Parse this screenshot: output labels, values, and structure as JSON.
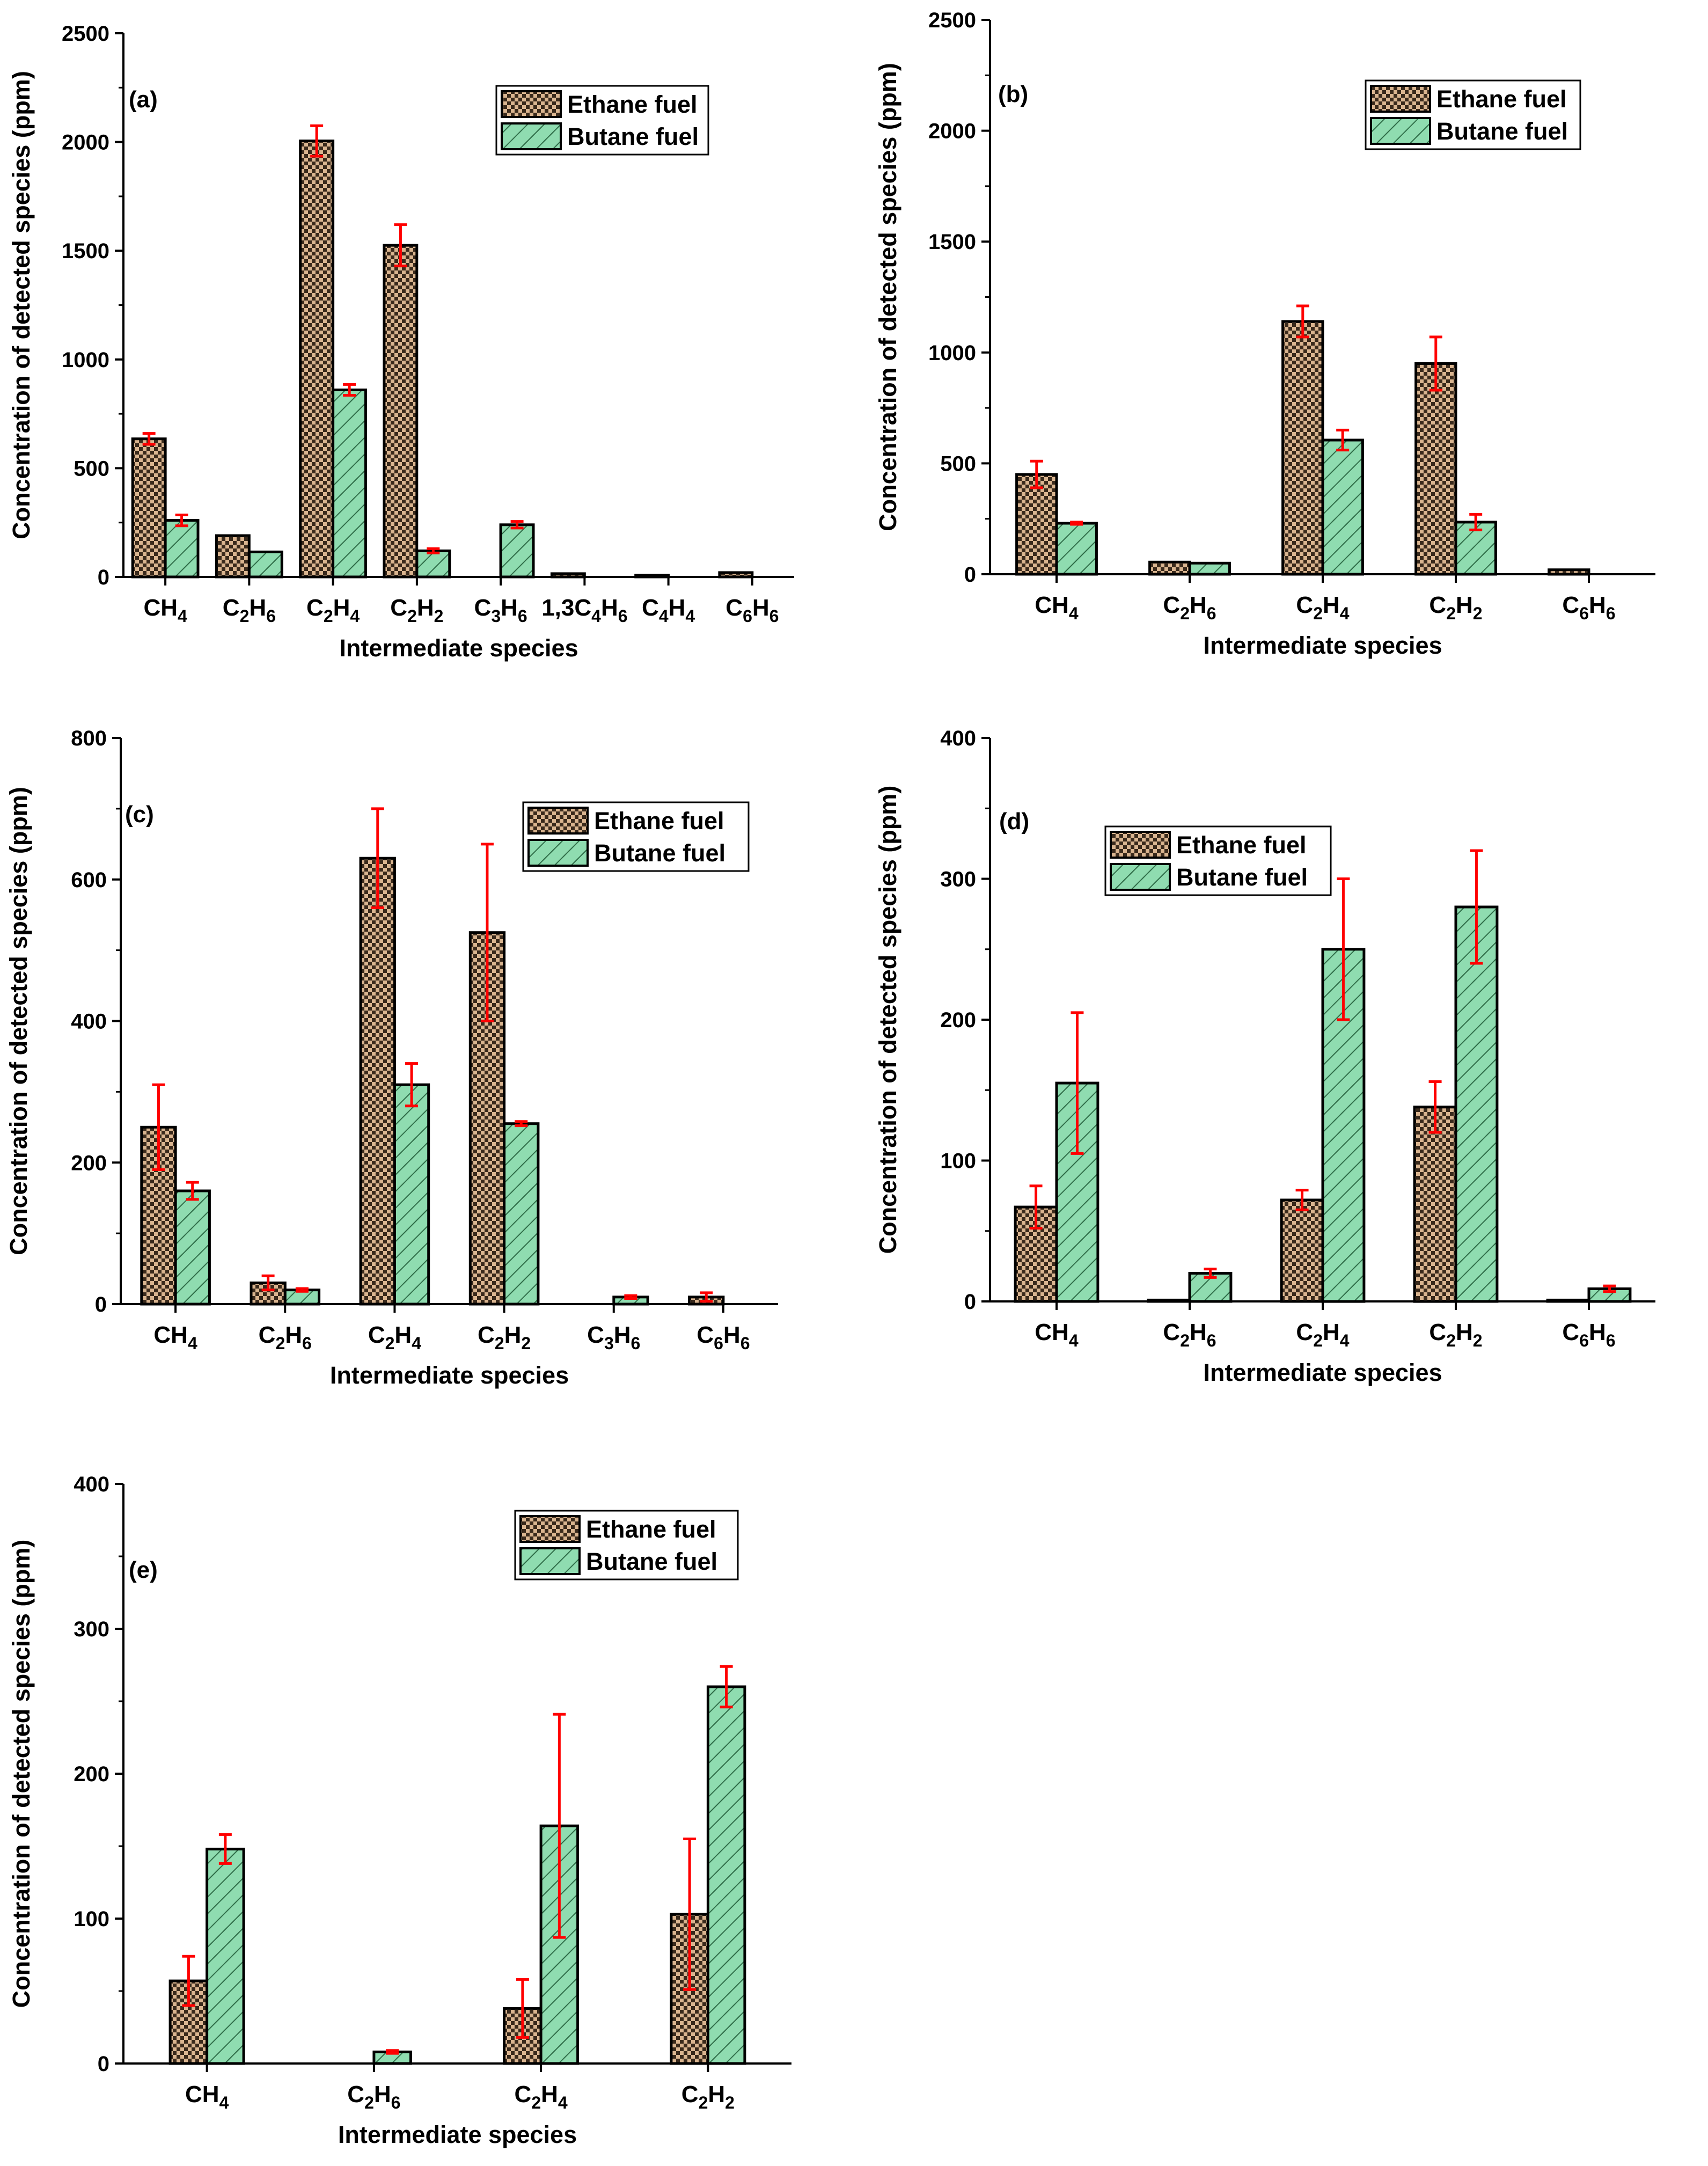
{
  "legend": {
    "ethane": "Ethane fuel",
    "butane": "Butane fuel"
  },
  "colors": {
    "ethane_fill": "#d9b48f",
    "ethane_hatch": "#3a2a1c",
    "butane_fill": "#8fdcb0",
    "butane_hatch": "#2f6d48",
    "error_bar": "#ff0000",
    "axis": "#000000"
  },
  "chart_data": [
    {
      "type": "bar",
      "panel_label": "(a)",
      "xlabel": "Intermediate species",
      "ylabel": "Concentration of detected species (ppm)",
      "ylim": [
        0,
        2500
      ],
      "yticks": [
        0,
        500,
        1000,
        1500,
        2000,
        2500
      ],
      "categories": [
        "CH4",
        "C2H6",
        "C2H4",
        "C2H2",
        "C3H6",
        "1,3C4H6",
        "C4H4",
        "C6H6"
      ],
      "series": [
        {
          "name": "Ethane fuel",
          "values": [
            635,
            190,
            2005,
            1525,
            0,
            15,
            8,
            20
          ],
          "errors": [
            25,
            0,
            70,
            95,
            0,
            0,
            0,
            0
          ]
        },
        {
          "name": "Butane fuel",
          "values": [
            260,
            115,
            860,
            120,
            240,
            0,
            0,
            0
          ],
          "errors": [
            25,
            0,
            25,
            10,
            15,
            0,
            0,
            0
          ]
        }
      ],
      "legend_position": "top-right",
      "grid": false
    },
    {
      "type": "bar",
      "panel_label": "(b)",
      "xlabel": "Intermediate species",
      "ylabel": "Concentration of detected species (ppm)",
      "ylim": [
        0,
        2500
      ],
      "yticks": [
        0,
        500,
        1000,
        1500,
        2000,
        2500
      ],
      "categories": [
        "CH4",
        "C2H6",
        "C2H4",
        "C2H2",
        "C6H6"
      ],
      "series": [
        {
          "name": "Ethane fuel",
          "values": [
            450,
            55,
            1140,
            950,
            20
          ],
          "errors": [
            60,
            0,
            70,
            120,
            0
          ]
        },
        {
          "name": "Butane fuel",
          "values": [
            230,
            50,
            605,
            235,
            0
          ],
          "errors": [
            5,
            0,
            45,
            35,
            0
          ]
        }
      ],
      "legend_position": "top-right",
      "grid": false
    },
    {
      "type": "bar",
      "panel_label": "(c)",
      "xlabel": "Intermediate species",
      "ylabel": "Concentration of detected species (ppm)",
      "ylim": [
        0,
        800
      ],
      "yticks": [
        0,
        200,
        400,
        600,
        800
      ],
      "categories": [
        "CH4",
        "C2H6",
        "C2H4",
        "C2H2",
        "C3H6",
        "C6H6"
      ],
      "series": [
        {
          "name": "Ethane fuel",
          "values": [
            250,
            30,
            630,
            525,
            0,
            10
          ],
          "errors": [
            60,
            10,
            70,
            125,
            0,
            6
          ]
        },
        {
          "name": "Butane fuel",
          "values": [
            160,
            20,
            310,
            255,
            10,
            0
          ],
          "errors": [
            12,
            2,
            30,
            3,
            2,
            0
          ]
        }
      ],
      "legend_position": "top-right",
      "grid": false
    },
    {
      "type": "bar",
      "panel_label": "(d)",
      "xlabel": "Intermediate species",
      "ylabel": "Concentration of detected species (ppm)",
      "ylim": [
        0,
        400
      ],
      "yticks": [
        0,
        100,
        200,
        300,
        400
      ],
      "categories": [
        "CH4",
        "C2H6",
        "C2H4",
        "C2H2",
        "C6H6"
      ],
      "series": [
        {
          "name": "Ethane fuel",
          "values": [
            67,
            1,
            72,
            138,
            1
          ],
          "errors": [
            15,
            0,
            7,
            18,
            0
          ]
        },
        {
          "name": "Butane fuel",
          "values": [
            155,
            20,
            250,
            280,
            9
          ],
          "errors": [
            50,
            3,
            50,
            40,
            2
          ]
        }
      ],
      "legend_position": "top-left",
      "grid": false
    },
    {
      "type": "bar",
      "panel_label": "(e)",
      "xlabel": "Intermediate species",
      "ylabel": "Concentration of detected species (ppm)",
      "ylim": [
        0,
        400
      ],
      "yticks": [
        0,
        100,
        200,
        300,
        400
      ],
      "categories": [
        "CH4",
        "C2H6",
        "C2H4",
        "C2H2"
      ],
      "series": [
        {
          "name": "Ethane fuel",
          "values": [
            57,
            0,
            38,
            103
          ],
          "errors": [
            17,
            0,
            20,
            52
          ]
        },
        {
          "name": "Butane fuel",
          "values": [
            148,
            8,
            164,
            260
          ],
          "errors": [
            10,
            1,
            77,
            14
          ]
        }
      ],
      "legend_position": "top-center",
      "grid": false
    }
  ]
}
